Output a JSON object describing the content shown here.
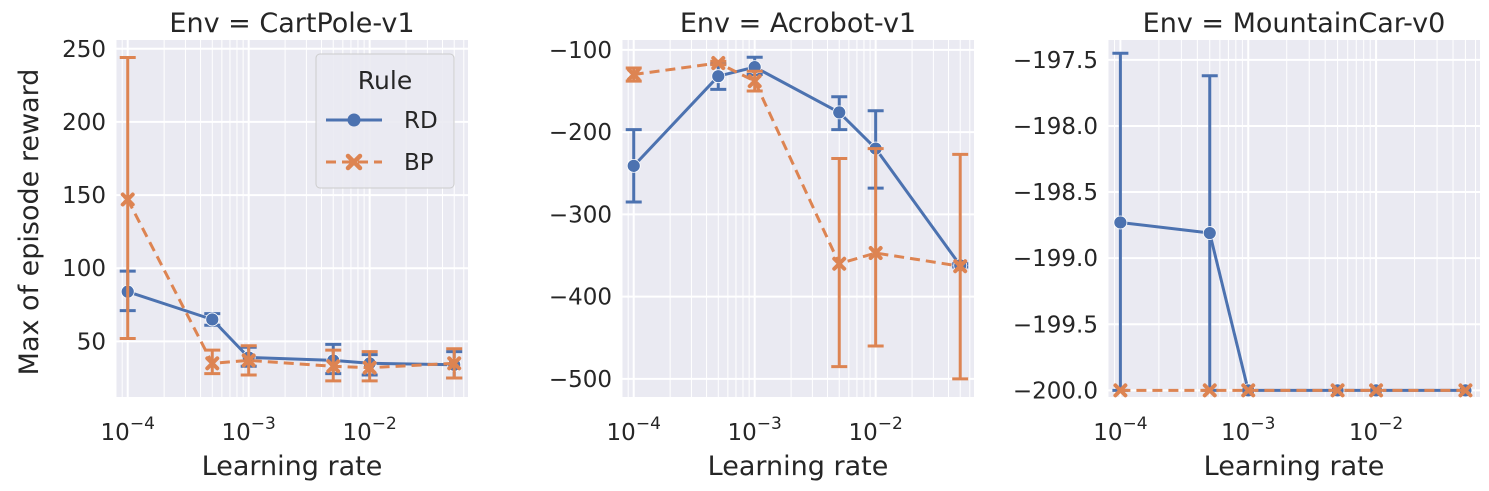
{
  "figure": {
    "y_label": "Max of episode reward",
    "x_label": "Learning rate"
  },
  "legend": {
    "title": "Rule",
    "entries": [
      {
        "label": "RD",
        "color": "#4c72b0",
        "marker": "circle",
        "dash": "solid"
      },
      {
        "label": "BP",
        "color": "#dd8452",
        "marker": "x",
        "dash": "dashed"
      }
    ]
  },
  "chart_data": [
    {
      "type": "line",
      "title": "Env = CartPole-v1",
      "xlabel": "Learning rate",
      "ylabel": "Max of episode reward",
      "xscale": "log",
      "xlim": [
        8e-05,
        0.065
      ],
      "ylim": [
        12,
        256
      ],
      "yticks": [
        50,
        100,
        150,
        200,
        250
      ],
      "ytick_labels": [
        "50",
        "100",
        "150",
        "200",
        "250"
      ],
      "x": [
        0.0001,
        0.0005,
        0.001,
        0.005,
        0.01,
        0.05
      ],
      "series": [
        {
          "name": "RD",
          "values": [
            84,
            65,
            39,
            37,
            35,
            34
          ],
          "err_low": [
            71,
            61,
            33,
            28,
            27,
            25
          ],
          "err_high": [
            98,
            69,
            46,
            48,
            41,
            43
          ]
        },
        {
          "name": "BP",
          "values": [
            147,
            35,
            37,
            33,
            32,
            35
          ],
          "err_low": [
            52,
            28,
            27,
            23,
            23,
            25
          ],
          "err_high": [
            244,
            44,
            47,
            44,
            43,
            45
          ]
        }
      ],
      "grid": true,
      "legend_position": "upper-right"
    },
    {
      "type": "line",
      "title": "Env = Acrobot-v1",
      "xlabel": "Learning rate",
      "xscale": "log",
      "xlim": [
        8e-05,
        0.065
      ],
      "ylim": [
        -522,
        -88
      ],
      "yticks": [
        -500,
        -400,
        -300,
        -200,
        -100
      ],
      "ytick_labels": [
        "−500",
        "−400",
        "−300",
        "−200",
        "−100"
      ],
      "x": [
        0.0001,
        0.0005,
        0.001,
        0.005,
        0.01,
        0.05
      ],
      "series": [
        {
          "name": "RD",
          "values": [
            -241,
            -132,
            -121,
            -176,
            -220,
            -362
          ],
          "err_low": [
            -285,
            -148,
            -130,
            -197,
            -268,
            -364
          ],
          "err_high": [
            -197,
            -117,
            -109,
            -157,
            -174,
            -360
          ]
        },
        {
          "name": "BP",
          "values": [
            -130,
            -116,
            -138,
            -360,
            -347,
            -363
          ],
          "err_low": [
            -138,
            -118,
            -150,
            -485,
            -460,
            -500
          ],
          "err_high": [
            -122,
            -114,
            -126,
            -232,
            -220,
            -227
          ]
        }
      ],
      "grid": true
    },
    {
      "type": "line",
      "title": "Env = MountainCar-v0",
      "xlabel": "Learning rate",
      "xscale": "log",
      "xlim": [
        8e-05,
        0.065
      ],
      "ylim": [
        -200.05,
        -197.35
      ],
      "yticks": [
        -200.0,
        -199.5,
        -199.0,
        -198.5,
        -198.0,
        -197.5
      ],
      "ytick_labels": [
        "−200.0",
        "−199.5",
        "−199.0",
        "−198.5",
        "−198.0",
        "−197.5"
      ],
      "x": [
        0.0001,
        0.0005,
        0.001,
        0.005,
        0.01,
        0.05
      ],
      "series": [
        {
          "name": "RD",
          "values": [
            -198.73,
            -198.81,
            -200.0,
            -200.0,
            -200.0,
            -200.0
          ],
          "err_low": [
            -200.0,
            -200.0,
            -200.0,
            -200.0,
            -200.0,
            -200.0
          ],
          "err_high": [
            -197.45,
            -197.62,
            -200.0,
            -200.0,
            -200.0,
            -200.0
          ]
        },
        {
          "name": "BP",
          "values": [
            -200.0,
            -200.0,
            -200.0,
            -200.0,
            -200.0,
            -200.0
          ],
          "err_low": [
            -200.0,
            -200.0,
            -200.0,
            -200.0,
            -200.0,
            -200.0
          ],
          "err_high": [
            -200.0,
            -200.0,
            -200.0,
            -200.0,
            -200.0,
            -200.0
          ]
        }
      ],
      "grid": true
    }
  ]
}
